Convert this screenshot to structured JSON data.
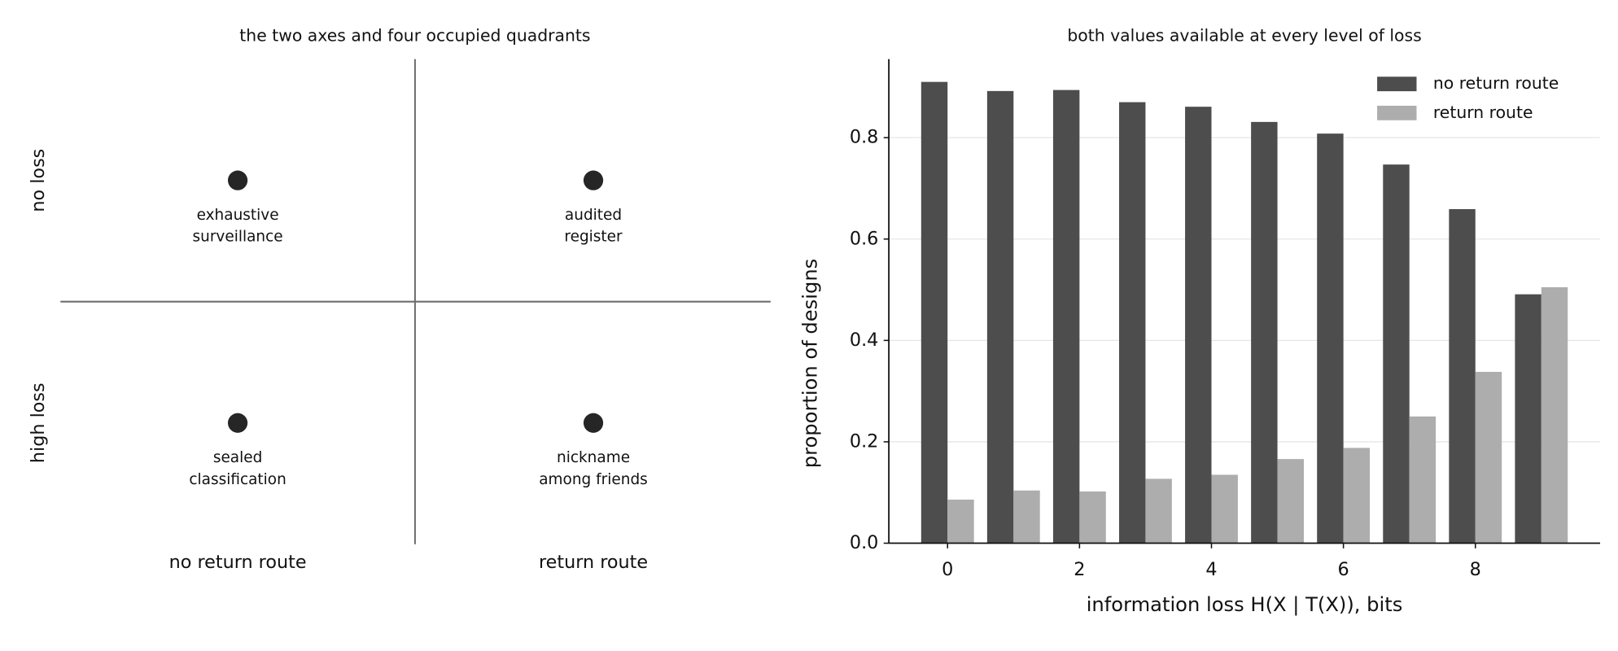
{
  "chart_data": [
    {
      "type": "quadrant",
      "title": "the two axes and four occupied quadrants",
      "x_categories": [
        "no return route",
        "return route"
      ],
      "y_categories": [
        "no loss",
        "high loss"
      ],
      "color": "#262626",
      "points": [
        {
          "x": "no return route",
          "y": "no loss",
          "label": [
            "exhaustive",
            "surveillance"
          ]
        },
        {
          "x": "return route",
          "y": "no loss",
          "label": [
            "audited",
            "register"
          ]
        },
        {
          "x": "no return route",
          "y": "high loss",
          "label": [
            "sealed",
            "classification"
          ]
        },
        {
          "x": "return route",
          "y": "high loss",
          "label": [
            "nickname",
            "among friends"
          ]
        }
      ]
    },
    {
      "type": "bar",
      "title": "both values available at every level of loss",
      "x_label": "information loss H(X | T(X)), bits",
      "y_label": "proportion of designs",
      "x": [
        0,
        1,
        2,
        3,
        4,
        5,
        6,
        7,
        8,
        9
      ],
      "xlim": [
        -0.89,
        9.89
      ],
      "xticks": [
        0,
        2,
        4,
        6,
        8
      ],
      "ylim": [
        0,
        0.955
      ],
      "yticks": [
        {
          "value": 0,
          "label": "0.0"
        },
        {
          "value": 0.2,
          "label": "0.2"
        },
        {
          "value": 0.4,
          "label": "0.4"
        },
        {
          "value": 0.6,
          "label": "0.6"
        },
        {
          "value": 0.8,
          "label": "0.8"
        }
      ],
      "grid": true,
      "legend": "upper right",
      "series": [
        {
          "name": "no return route",
          "color": "#4d4d4d",
          "values": [
            0.91,
            0.892,
            0.894,
            0.87,
            0.861,
            0.831,
            0.808,
            0.747,
            0.659,
            0.491
          ]
        },
        {
          "name": "return route",
          "color": "#adadad",
          "values": [
            0.086,
            0.104,
            0.102,
            0.127,
            0.135,
            0.166,
            0.188,
            0.25,
            0.338,
            0.505
          ]
        }
      ]
    }
  ]
}
